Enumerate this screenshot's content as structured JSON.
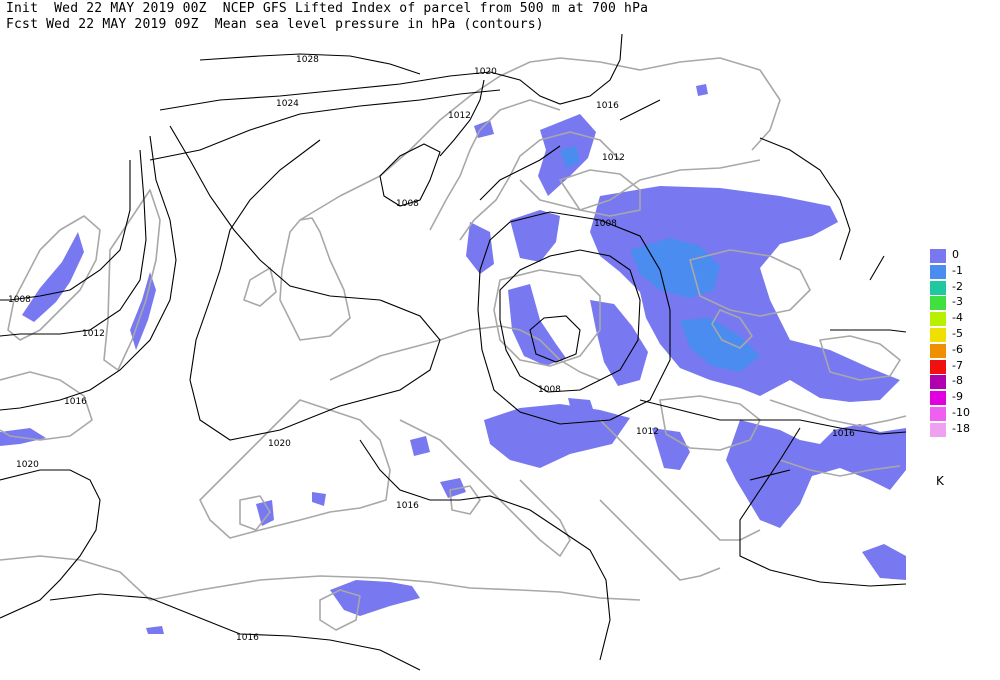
{
  "header": {
    "line1": "Init  Wed 22 MAY 2019 00Z  NCEP GFS Lifted Index of parcel from 500 m at 700 hPa",
    "line2": "Fcst Wed 22 MAY 2019 09Z  Mean sea level pressure in hPa (contours)"
  },
  "isobar_labels": {
    "l1028": "1028",
    "l1024": "1024",
    "l1020": "1020",
    "l1016": "1016",
    "l1012": "1012",
    "l1008": "1008"
  },
  "legend": {
    "items": [
      {
        "label": "0",
        "color": "#7878f0"
      },
      {
        "label": "-1",
        "color": "#4a8cf0"
      },
      {
        "label": "-2",
        "color": "#20c8a0"
      },
      {
        "label": "-3",
        "color": "#40e040"
      },
      {
        "label": "-4",
        "color": "#b8f000"
      },
      {
        "label": "-5",
        "color": "#f0e000"
      },
      {
        "label": "-6",
        "color": "#f09000"
      },
      {
        "label": "-7",
        "color": "#f01010"
      },
      {
        "label": "-8",
        "color": "#b000b0"
      },
      {
        "label": "-9",
        "color": "#e000e0"
      },
      {
        "label": "-10",
        "color": "#f060f0"
      },
      {
        "label": "-18",
        "color": "#f0a0f0"
      }
    ],
    "unit": "K"
  },
  "colors": {
    "coastline": "#a8a8a8",
    "isobar": "#000000",
    "li_0": "#7878f0",
    "li_m1": "#4a8cf0"
  }
}
